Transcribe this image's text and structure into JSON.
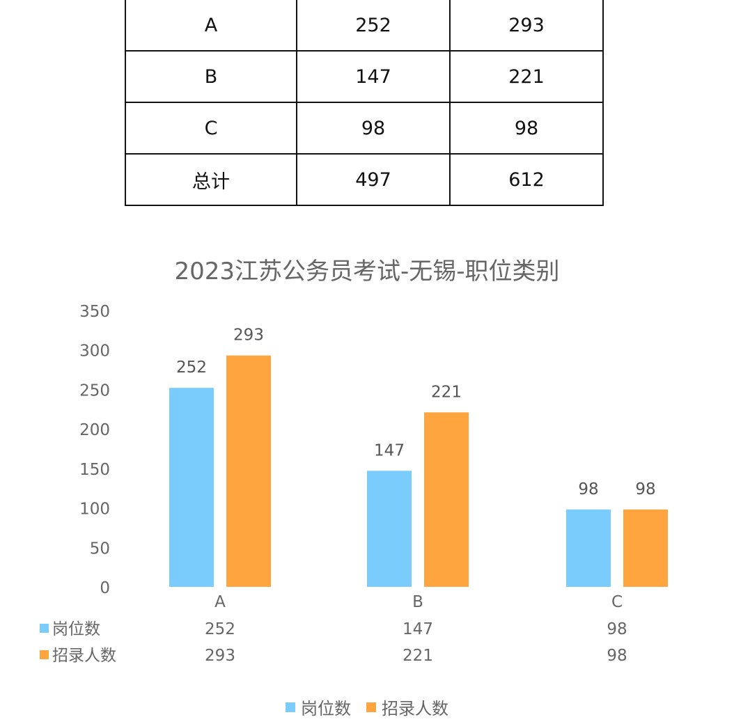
{
  "table": {
    "rows": [
      [
        "A",
        "252",
        "293"
      ],
      [
        "B",
        "147",
        "221"
      ],
      [
        "C",
        "98",
        "98"
      ],
      [
        "总计",
        "497",
        "612"
      ]
    ]
  },
  "chart_data": {
    "type": "bar",
    "title": "2023江苏公务员考试-无锡-职位类别",
    "categories": [
      "A",
      "B",
      "C"
    ],
    "series": [
      {
        "name": "岗位数",
        "values": [
          252,
          147,
          98
        ],
        "color": "#7ACCFD"
      },
      {
        "name": "招录人数",
        "values": [
          293,
          221,
          98
        ],
        "color": "#FFA53F"
      }
    ],
    "ylim": [
      0,
      350
    ],
    "yticks": [
      0,
      50,
      100,
      150,
      200,
      250,
      300,
      350
    ],
    "grid": false,
    "data_table": true,
    "legend": "bottom"
  }
}
